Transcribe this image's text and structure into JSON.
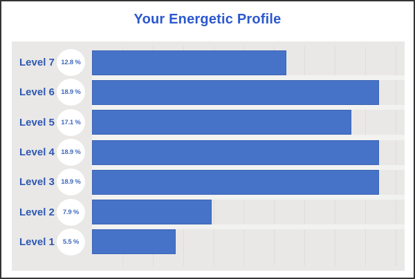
{
  "title": "Your Energetic Profile",
  "colors": {
    "title_text": "#2b58cf",
    "label_text": "#2d57b2",
    "bar_fill": "#4673c8",
    "bar_border": "#3c64b2",
    "panel_background": "#e9e8e7",
    "bubble_background": "#ffffff",
    "gridline": "#dddddc",
    "frame_border": "#333333"
  },
  "chart_data": {
    "type": "bar",
    "orientation": "horizontal",
    "title": "Your Energetic Profile",
    "categories": [
      "Level 7",
      "Level 6",
      "Level 5",
      "Level 4",
      "Level 3",
      "Level 2",
      "Level 1"
    ],
    "values": [
      12.8,
      18.9,
      17.1,
      18.9,
      18.9,
      7.9,
      5.5
    ],
    "value_labels": [
      "12.8 %",
      "18.9 %",
      "17.1 %",
      "18.9 %",
      "18.9 %",
      "7.9 %",
      "5.5 %"
    ],
    "xlabel": "",
    "ylabel": "",
    "xlim": [
      0,
      20.6
    ],
    "gridline_interval": 2,
    "grid": "vertical-only",
    "legend": "none",
    "axis_tick_labels": "none"
  }
}
